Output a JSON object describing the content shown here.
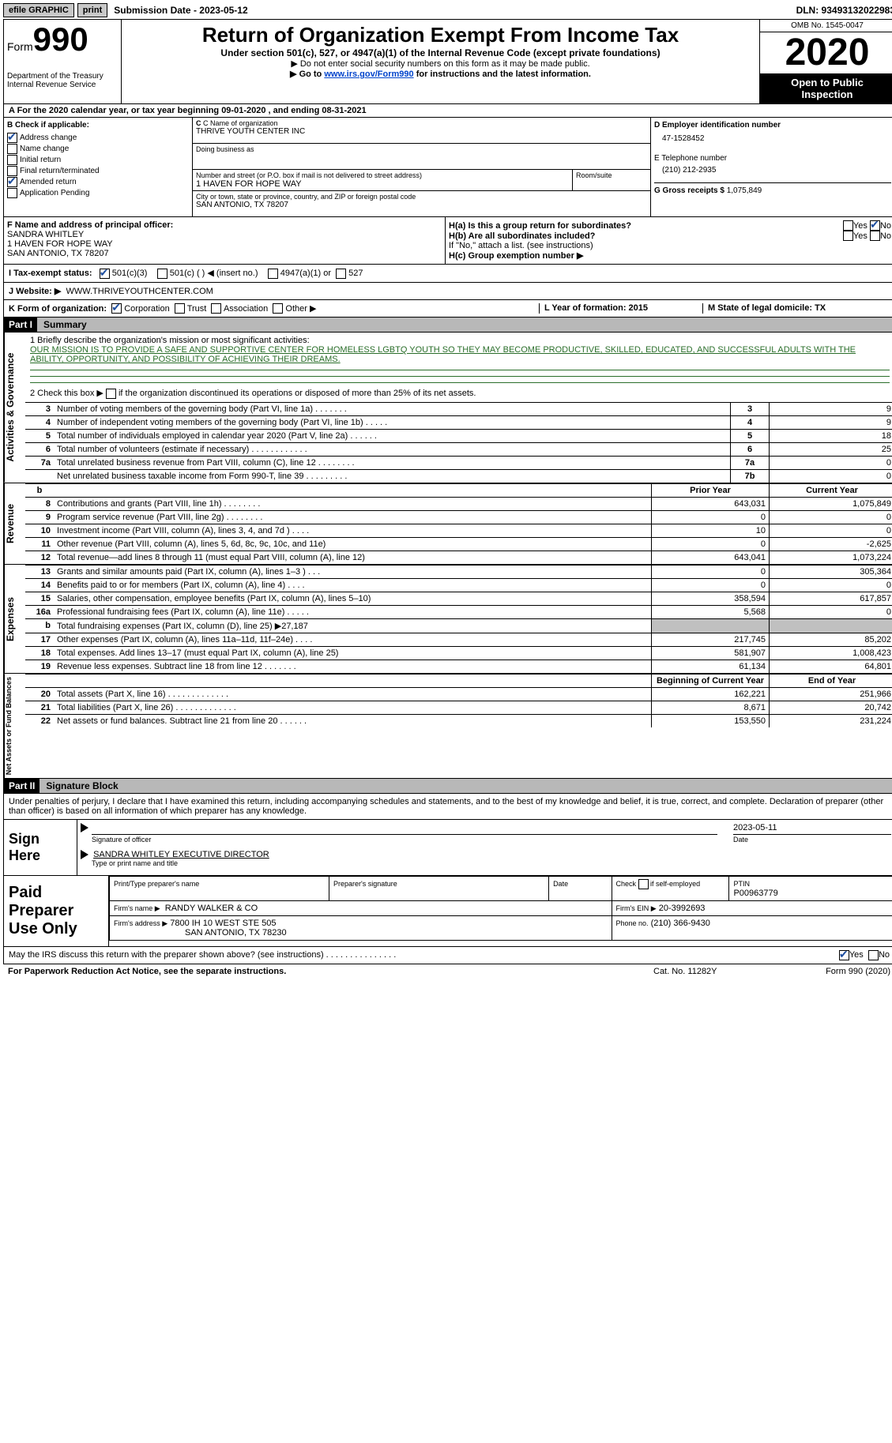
{
  "topbar": {
    "efile": "efile GRAPHIC",
    "print": "print",
    "submission": "Submission Date - 2023-05-12",
    "dln": "DLN: 93493132022983"
  },
  "header": {
    "form_label": "Form",
    "form_num": "990",
    "dept": "Department of the Treasury",
    "irs": "Internal Revenue Service",
    "title": "Return of Organization Exempt From Income Tax",
    "subtitle": "Under section 501(c), 527, or 4947(a)(1) of the Internal Revenue Code (except private foundations)",
    "note1": "▶ Do not enter social security numbers on this form as it may be made public.",
    "note2_pre": "▶ Go to ",
    "note2_link": "www.irs.gov/Form990",
    "note2_post": " for instructions and the latest information.",
    "omb": "OMB No. 1545-0047",
    "year": "2020",
    "inspect1": "Open to Public",
    "inspect2": "Inspection"
  },
  "a_line": "A For the 2020 calendar year, or tax year beginning 09-01-2020   , and ending 08-31-2021",
  "checkB": {
    "label": "B Check if applicable:",
    "addr": "Address change",
    "name": "Name change",
    "initial": "Initial return",
    "final": "Final return/terminated",
    "amended": "Amended return",
    "app": "Application Pending"
  },
  "boxC": {
    "name_lbl": "C Name of organization",
    "name": "THRIVE YOUTH CENTER INC",
    "dba_lbl": "Doing business as",
    "addr_lbl": "Number and street (or P.O. box if mail is not delivered to street address)",
    "addr": "1 HAVEN FOR HOPE WAY",
    "room_lbl": "Room/suite",
    "city_lbl": "City or town, state or province, country, and ZIP or foreign postal code",
    "city": "SAN ANTONIO, TX  78207"
  },
  "boxD": {
    "ein_lbl": "D Employer identification number",
    "ein": "47-1528452",
    "tel_lbl": "E Telephone number",
    "tel": "(210) 212-2935",
    "gross_lbl": "G Gross receipts $",
    "gross": "1,075,849"
  },
  "secF": {
    "f_lbl": "F Name and address of principal officer:",
    "f_name": "SANDRA WHITLEY",
    "f_addr1": "1 HAVEN FOR HOPE WAY",
    "f_addr2": "SAN ANTONIO, TX  78207",
    "ha": "H(a)  Is this a group return for subordinates?",
    "hb": "H(b)  Are all subordinates included?",
    "hb_note": "If \"No,\" attach a list. (see instructions)",
    "hc": "H(c)  Group exemption number ▶",
    "yes": "Yes",
    "no": "No"
  },
  "tax": {
    "i_lbl": "I   Tax-exempt status:",
    "c3": "501(c)(3)",
    "c_other": "501(c) (  ) ◀ (insert no.)",
    "c4947": "4947(a)(1) or",
    "c527": "527"
  },
  "web": {
    "lbl": "J   Website: ▶",
    "val": "WWW.THRIVEYOUTHCENTER.COM"
  },
  "k": {
    "lbl": "K Form of organization:",
    "corp": "Corporation",
    "trust": "Trust",
    "assoc": "Association",
    "other": "Other ▶",
    "l": "L Year of formation: 2015",
    "m": "M State of legal domicile: TX"
  },
  "part1": {
    "num": "Part I",
    "title": "Summary"
  },
  "mission": {
    "q1": "1  Briefly describe the organization's mission or most significant activities:",
    "txt": "OUR MISSION IS TO PROVIDE A SAFE AND SUPPORTIVE CENTER FOR HOMELESS LGBTQ YOUTH SO THEY MAY BECOME PRODUCTIVE, SKILLED, EDUCATED, AND SUCCESSFUL ADULTS WITH THE ABILITY, OPPORTUNITY, AND POSSIBILITY OF ACHIEVING THEIR DREAMS.",
    "q2_pre": "2  Check this box ▶",
    "q2_post": " if the organization discontinued its operations or disposed of more than 25% of its net assets."
  },
  "gov_rows": [
    {
      "n": "3",
      "t": "Number of voting members of the governing body (Part VI, line 1a)   .    .    .    .    .    .    .",
      "box": "3",
      "v": "9"
    },
    {
      "n": "4",
      "t": "Number of independent voting members of the governing body (Part VI, line 1b)   .    .    .    .    .",
      "box": "4",
      "v": "9"
    },
    {
      "n": "5",
      "t": "Total number of individuals employed in calendar year 2020 (Part V, line 2a)   .    .    .    .    .    .",
      "box": "5",
      "v": "18"
    },
    {
      "n": "6",
      "t": "Total number of volunteers (estimate if necessary)   .    .    .    .    .    .    .    .    .    .    .    .",
      "box": "6",
      "v": "25"
    },
    {
      "n": "7a",
      "t": "Total unrelated business revenue from Part VIII, column (C), line 12   .    .    .    .    .    .    .    .",
      "box": "7a",
      "v": "0"
    },
    {
      "n": "",
      "t": "Net unrelated business taxable income from Form 990-T, line 39   .    .    .    .    .    .    .    .    .",
      "box": "7b",
      "v": "0"
    }
  ],
  "rev_hdr": {
    "b": "b",
    "py": "Prior Year",
    "cy": "Current Year"
  },
  "rev_rows": [
    {
      "n": "8",
      "t": "Contributions and grants (Part VIII, line 1h)   .    .    .    .    .    .    .    .",
      "py": "643,031",
      "cy": "1,075,849"
    },
    {
      "n": "9",
      "t": "Program service revenue (Part VIII, line 2g)   .    .    .    .    .    .    .    .",
      "py": "0",
      "cy": "0"
    },
    {
      "n": "10",
      "t": "Investment income (Part VIII, column (A), lines 3, 4, and 7d )   .    .    .    .",
      "py": "10",
      "cy": "0"
    },
    {
      "n": "11",
      "t": "Other revenue (Part VIII, column (A), lines 5, 6d, 8c, 9c, 10c, and 11e)",
      "py": "0",
      "cy": "-2,625"
    },
    {
      "n": "12",
      "t": "Total revenue—add lines 8 through 11 (must equal Part VIII, column (A), line 12)",
      "py": "643,041",
      "cy": "1,073,224"
    }
  ],
  "exp_rows": [
    {
      "n": "13",
      "t": "Grants and similar amounts paid (Part IX, column (A), lines 1–3 )   .    .    .",
      "py": "0",
      "cy": "305,364"
    },
    {
      "n": "14",
      "t": "Benefits paid to or for members (Part IX, column (A), line 4)   .    .    .    .",
      "py": "0",
      "cy": "0"
    },
    {
      "n": "15",
      "t": "Salaries, other compensation, employee benefits (Part IX, column (A), lines 5–10)",
      "py": "358,594",
      "cy": "617,857"
    },
    {
      "n": "16a",
      "t": "Professional fundraising fees (Part IX, column (A), line 11e)   .    .    .    .    .",
      "py": "5,568",
      "cy": "0"
    },
    {
      "n": "b",
      "t": "Total fundraising expenses (Part IX, column (D), line 25) ▶27,187",
      "py": "",
      "cy": "",
      "shade": true
    },
    {
      "n": "17",
      "t": "Other expenses (Part IX, column (A), lines 11a–11d, 11f–24e)   .    .    .    .",
      "py": "217,745",
      "cy": "85,202"
    },
    {
      "n": "18",
      "t": "Total expenses. Add lines 13–17 (must equal Part IX, column (A), line 25)",
      "py": "581,907",
      "cy": "1,008,423"
    },
    {
      "n": "19",
      "t": "Revenue less expenses. Subtract line 18 from line 12   .    .    .    .    .    .    .",
      "py": "61,134",
      "cy": "64,801"
    }
  ],
  "net_hdr": {
    "py": "Beginning of Current Year",
    "cy": "End of Year"
  },
  "net_rows": [
    {
      "n": "20",
      "t": "Total assets (Part X, line 16)   .    .    .    .    .    .    .    .    .    .    .    .    .",
      "py": "162,221",
      "cy": "251,966"
    },
    {
      "n": "21",
      "t": "Total liabilities (Part X, line 26)   .    .    .    .    .    .    .    .    .    .    .    .    .",
      "py": "8,671",
      "cy": "20,742"
    },
    {
      "n": "22",
      "t": "Net assets or fund balances. Subtract line 21 from line 20   .    .    .    .    .    .",
      "py": "153,550",
      "cy": "231,224"
    }
  ],
  "vlabels": {
    "gov": "Activities & Governance",
    "rev": "Revenue",
    "exp": "Expenses",
    "net": "Net Assets or Fund Balances"
  },
  "part2": {
    "num": "Part II",
    "title": "Signature Block"
  },
  "decl": "Under penalties of perjury, I declare that I have examined this return, including accompanying schedules and statements, and to the best of my knowledge and belief, it is true, correct, and complete. Declaration of preparer (other than officer) is based on all information of which preparer has any knowledge.",
  "sign": {
    "lbl": "Sign Here",
    "date": "2023-05-11",
    "sig_of": "Signature of officer",
    "date_lbl": "Date",
    "name": "SANDRA WHITLEY EXECUTIVE DIRECTOR",
    "name_lbl": "Type or print name and title"
  },
  "prep": {
    "lbl": "Paid Preparer Use Only",
    "h1": "Print/Type preparer's name",
    "h2": "Preparer's signature",
    "h3": "Date",
    "h4_pre": "Check",
    "h4_post": "if self-employed",
    "h5": "PTIN",
    "ptin": "P00963779",
    "firm_lbl": "Firm's name    ▶",
    "firm": "RANDY WALKER & CO",
    "ein_lbl": "Firm's EIN ▶",
    "ein": "20-3992693",
    "addr_lbl": "Firm's address ▶",
    "addr1": "7800 IH 10 WEST STE 505",
    "addr2": "SAN ANTONIO, TX  78230",
    "phone_lbl": "Phone no.",
    "phone": "(210) 366-9430"
  },
  "discuss": "May the IRS discuss this return with the preparer shown above? (see instructions)   .    .    .    .    .    .    .    .    .    .    .    .    .    .    .",
  "footer": {
    "l": "For Paperwork Reduction Act Notice, see the separate instructions.",
    "m": "Cat. No. 11282Y",
    "r": "Form 990 (2020)"
  }
}
